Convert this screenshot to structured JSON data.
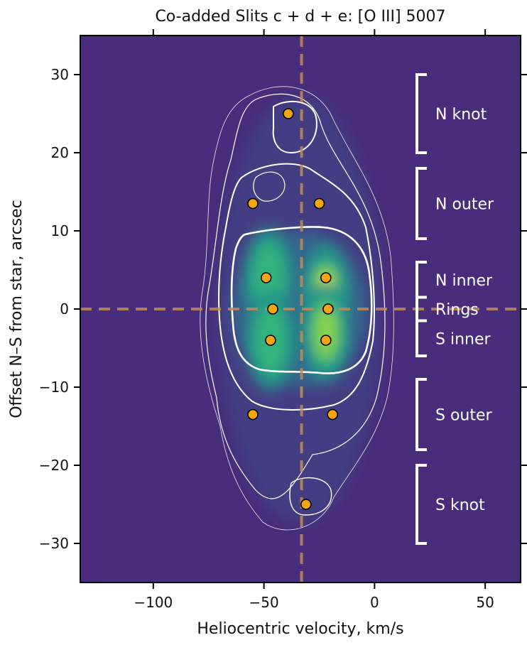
{
  "chart_data": {
    "type": "heatmap",
    "title": "Co-added Slits c + d + e: [O III] 5007",
    "xlabel": "Heliocentric velocity, km/s",
    "ylabel": "Offset N–S from star, arcsec",
    "xlim": [
      -133,
      66
    ],
    "ylim": [
      -35,
      35
    ],
    "xticks": [
      -100,
      -50,
      0,
      50
    ],
    "xtick_labels": [
      "−100",
      "−50",
      "0",
      "50"
    ],
    "yticks": [
      -30,
      -20,
      -10,
      0,
      10,
      20,
      30
    ],
    "ytick_labels": [
      "−30",
      "−20",
      "−10",
      "0",
      "10",
      "20",
      "30"
    ],
    "colormap": "viridis",
    "background_color": "#472d7b",
    "reference_lines": {
      "systemic_velocity": -33,
      "star_offset": 0,
      "color": "#c08a5a"
    },
    "emission_peaks": [
      {
        "x": -48,
        "y": 4,
        "intensity": 0.55
      },
      {
        "x": -47,
        "y": -4,
        "intensity": 0.55
      },
      {
        "x": -22,
        "y": 2,
        "intensity": 0.95
      },
      {
        "x": -22,
        "y": -3,
        "intensity": 0.85
      }
    ],
    "knots": [
      {
        "x": -39,
        "y": 25
      },
      {
        "x": -55,
        "y": 13.5
      },
      {
        "x": -25,
        "y": 13.5
      },
      {
        "x": -49,
        "y": 4
      },
      {
        "x": -22,
        "y": 4
      },
      {
        "x": -46,
        "y": 0
      },
      {
        "x": -21,
        "y": 0
      },
      {
        "x": -47,
        "y": -4
      },
      {
        "x": -22,
        "y": -4
      },
      {
        "x": -55,
        "y": -13.5
      },
      {
        "x": -19,
        "y": -13.5
      },
      {
        "x": -31,
        "y": -25
      }
    ],
    "knot_color": "#f5a50f",
    "regions": [
      {
        "label": "N knot",
        "y_min": 20,
        "y_max": 30
      },
      {
        "label": "N outer",
        "y_min": 9,
        "y_max": 18
      },
      {
        "label": "N inner",
        "y_min": 1.5,
        "y_max": 6
      },
      {
        "label": "Rings",
        "y_min": -1.5,
        "y_max": 1.5
      },
      {
        "label": "S inner",
        "y_min": -6,
        "y_max": -1.5
      },
      {
        "label": "S outer",
        "y_min": -18,
        "y_max": -9
      },
      {
        "label": "S knot",
        "y_min": -30,
        "y_max": -20
      }
    ]
  }
}
